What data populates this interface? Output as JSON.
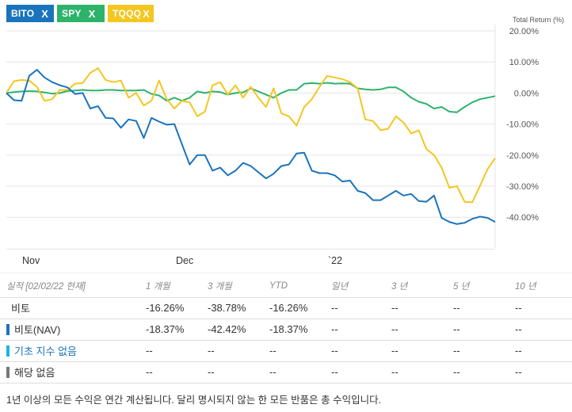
{
  "tags": [
    {
      "label": "BITO",
      "close": "X",
      "color": "#1a74bc"
    },
    {
      "label": "SPY",
      "close": "X",
      "color": "#2db36a"
    },
    {
      "label": "TQQQ",
      "close": "X",
      "color": "#f4c620"
    }
  ],
  "chart_data": {
    "type": "line",
    "title": "",
    "ylabel": "Total Return (%)",
    "xlabel": "",
    "ylim": [
      -50,
      20
    ],
    "yticks": [
      20,
      10,
      0,
      -10,
      -20,
      -30,
      -40
    ],
    "ytick_labels": [
      "20.00%",
      "10.00%",
      "0.00%",
      "-10.00%",
      "-20.00%",
      "-30.00%",
      "-40.00%"
    ],
    "x_ticks": [
      {
        "label": "Nov",
        "index": 4
      },
      {
        "label": "Dec",
        "index": 27
      },
      {
        "label": "`22",
        "index": 52
      }
    ],
    "grid": true,
    "legend": "top-left",
    "series": [
      {
        "name": "BITO",
        "color": "#1a74bc",
        "values": [
          0,
          -2.3,
          -2.5,
          5.5,
          7.5,
          5,
          3.5,
          2.5,
          1.8,
          -0.3,
          0,
          -5,
          -4.2,
          -8,
          -8.2,
          -11.2,
          -8.5,
          -9,
          -14.5,
          -8,
          -9.2,
          -10.2,
          -10,
          -16.5,
          -23,
          -20,
          -20,
          -25,
          -24,
          -26.5,
          -25,
          -22.5,
          -23.5,
          -25.5,
          -27.5,
          -26,
          -23.5,
          -23,
          -19.5,
          -19.2,
          -25,
          -25.8,
          -25.8,
          -26.5,
          -28.5,
          -28.2,
          -31.5,
          -32.2,
          -34.5,
          -34.5,
          -33,
          -31.5,
          -33,
          -32.5,
          -34.8,
          -35,
          -33,
          -40.2,
          -41.5,
          -42.2,
          -41.8,
          -40.5,
          -39.8,
          -40.2,
          -41.5
        ]
      },
      {
        "name": "SPY",
        "color": "#2db36a",
        "values": [
          0,
          0.3,
          0.5,
          0.6,
          0.5,
          0.2,
          -0.2,
          0,
          0.6,
          0.8,
          1,
          0.8,
          0.8,
          1,
          1,
          0.8,
          0.8,
          0.8,
          1,
          -0.3,
          -0.8,
          -2.5,
          -1.5,
          -2.5,
          -1.5,
          0.5,
          0,
          0.5,
          0.3,
          -0.5,
          0,
          0.2,
          1.5,
          0.5,
          -0.5,
          -1.5,
          0,
          1,
          1,
          3,
          3.2,
          3,
          3.3,
          3,
          3.1,
          3,
          1.5,
          1.2,
          1,
          1.2,
          1.8,
          1.8,
          0.5,
          -1.5,
          -2.8,
          -3.5,
          -5,
          -4.5,
          -6,
          -6.2,
          -4.5,
          -3,
          -2,
          -1.5,
          -1
        ]
      },
      {
        "name": "TQQQ",
        "color": "#f4c620",
        "values": [
          0,
          3.8,
          4.2,
          4,
          2,
          -2.5,
          -2,
          1,
          1,
          3,
          3.2,
          6.5,
          8,
          4.2,
          3.5,
          4,
          -1.5,
          0,
          -4,
          -2.5,
          4,
          -2,
          -5,
          -2.5,
          -3,
          -7.5,
          -6,
          2.5,
          3.5,
          -0.5,
          2.5,
          -1.5,
          2,
          -1.5,
          -4.5,
          1.5,
          -6.5,
          -7.5,
          -10.5,
          -4.5,
          -2,
          2,
          5.5,
          5,
          4.5,
          3.5,
          1.5,
          -8.5,
          -9,
          -12,
          -11.5,
          -7.5,
          -9.5,
          -13,
          -12,
          -18,
          -20,
          -24,
          -30.5,
          -30,
          -35,
          -35.2,
          -30,
          -24.5,
          -21
        ]
      }
    ]
  },
  "table": {
    "header": [
      "실적 [02/02/22 현재]",
      "1 개월",
      "3 개월",
      "YTD",
      "일년",
      "3 년",
      "5 년",
      "10 년"
    ],
    "rows": [
      {
        "label": "비토",
        "marker": "",
        "link": false,
        "cells": [
          "-16.26%",
          "-38.78%",
          "-16.26%",
          "--",
          "--",
          "--",
          "--"
        ]
      },
      {
        "label": "비토(NAV)",
        "marker": "#1a74bc",
        "link": false,
        "cells": [
          "-18.37%",
          "-42.42%",
          "-18.37%",
          "--",
          "--",
          "--",
          "--"
        ]
      },
      {
        "label": "기초 지수 없음",
        "marker": "#1ab4e8",
        "link": true,
        "cells": [
          "--",
          "--",
          "--",
          "--",
          "--",
          "--",
          "--"
        ]
      },
      {
        "label": "해당 없음",
        "marker": "#777777",
        "link": false,
        "cells": [
          "--",
          "--",
          "--",
          "--",
          "--",
          "--",
          "--"
        ]
      }
    ]
  },
  "footnote": "1년 이상의 모든 수익은 연간 계산됩니다. 달리 명시되지 않는 한 모든 반품은 총 수익입니다."
}
